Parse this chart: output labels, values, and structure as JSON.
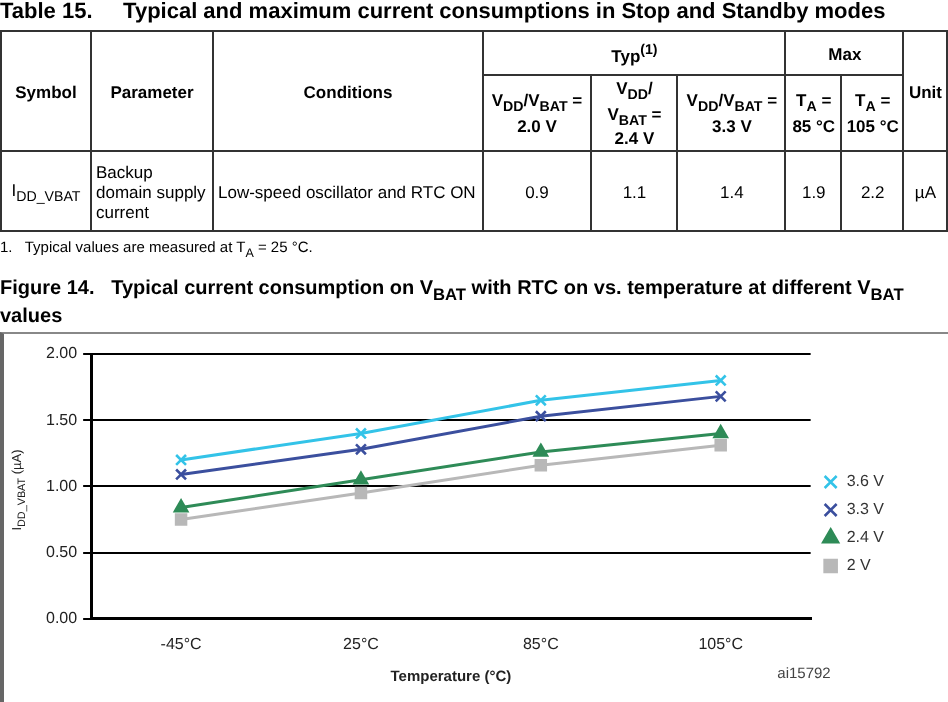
{
  "chart_data": [
    {
      "type": "other",
      "title": "Table 15.     Typical and maximum current consumptions in Stop and Standby modes",
      "annotations": [
        "Symbol",
        "Parameter",
        "Conditions",
        "Typ$^{(1)}$",
        "Max",
        "Unit",
        "V$_{DD}$/V$_{BAT}$ = 2.0 V",
        "V$_{DD}$/ V$_{BAT}$ = 2.4 V",
        "V$_{DD}$/V$_{BAT}$ = 3.3 V",
        "T$_{A}$ = 85 °C",
        "T$_{A}$ = 105 °C",
        "I$_{DD_VBAT}$",
        "Backup domain supply current",
        "Low-speed oscillator and RTC ON",
        "0.9",
        "1.1",
        "1.4",
        "1.9",
        "2.2",
        "µA",
        "1.   Typical values are measured at T$_{A}$ = 25 °C."
      ]
    },
    {
      "type": "line",
      "title": "Figure 14.   Typical current consumption on V$_{BAT}$ with RTC on vs. temperature at different V$_{BAT}$ values",
      "xlabel": "Temperature (°C)",
      "ylabel": "I$_{DD_VBAT}$ (µA)",
      "categories": [
        "-45°C",
        "25°C",
        "85°C",
        "105°C"
      ],
      "ylim": [
        0,
        2
      ],
      "yticks": [
        {
          "value": 0,
          "label": "0.00"
        },
        {
          "value": 0.5,
          "label": "0.50"
        },
        {
          "value": 1,
          "label": "1.00"
        },
        {
          "value": 1.5,
          "label": "1.50"
        },
        {
          "value": 2,
          "label": "2.00"
        }
      ],
      "grid": "y",
      "legend": "right",
      "annotations": [
        "ai15792"
      ],
      "series": [
        {
          "name": "3.6 V",
          "color": "#33c3e8",
          "marker": "cross",
          "values": [
            1.2,
            1.4,
            1.65,
            1.8
          ]
        },
        {
          "name": "3.3 V",
          "color": "#3b4f9e",
          "marker": "cross",
          "values": [
            1.09,
            1.28,
            1.53,
            1.68
          ]
        },
        {
          "name": "2.4 V",
          "color": "#2e8b57",
          "marker": "triangle",
          "values": [
            0.84,
            1.05,
            1.26,
            1.4
          ]
        },
        {
          "name": "2 V",
          "color": "#b8b8b8",
          "marker": "square",
          "values": [
            0.75,
            0.95,
            1.16,
            1.31
          ]
        }
      ]
    }
  ]
}
